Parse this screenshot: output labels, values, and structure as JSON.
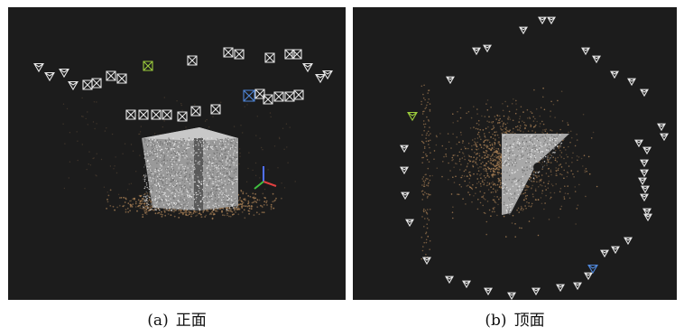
{
  "figure": {
    "panel_a": {
      "label": "(a)",
      "caption": "正面",
      "view": "front"
    },
    "panel_b": {
      "label": "(b)",
      "caption": "顶面",
      "view": "top"
    }
  },
  "colors": {
    "background": "#1c1c1c",
    "point_cloud": "#b08558",
    "object": "#d6d6d6",
    "camera_frame": "#e6e6e6",
    "highlight_green": "#9ccc3c",
    "highlight_blue": "#4f86d8",
    "axis_x": "#e04040",
    "axis_y": "#40c040",
    "axis_z": "#5070ff"
  }
}
